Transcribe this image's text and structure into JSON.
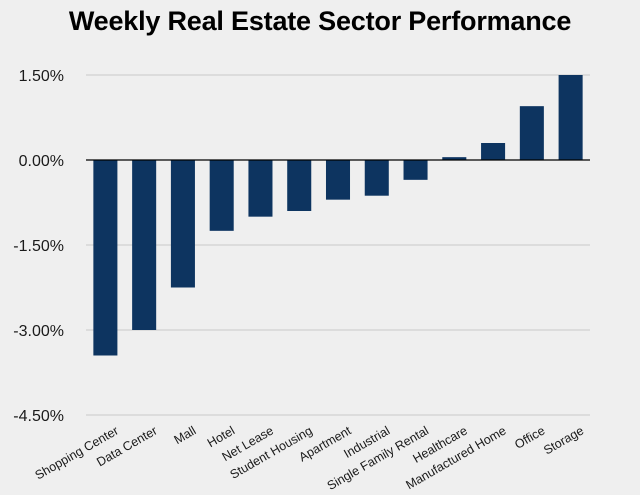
{
  "chart_data": {
    "type": "bar",
    "title": "Weekly Real Estate Sector Performance",
    "xlabel": "",
    "ylabel": "",
    "categories": [
      "Shopping Center",
      "Data Center",
      "Mall",
      "Hotel",
      "Net Lease",
      "Student Housing",
      "Apartment",
      "Industrial",
      "Single Family Rental",
      "Healthcare",
      "Manufactured Home",
      "Office",
      "Storage"
    ],
    "values": [
      -3.45,
      -3.0,
      -2.25,
      -1.25,
      -1.0,
      -0.9,
      -0.7,
      -0.63,
      -0.35,
      0.05,
      0.3,
      0.95,
      1.5
    ],
    "ylim": [
      -4.5,
      1.5
    ],
    "yticks": [
      1.5,
      0.0,
      -1.5,
      -3.0,
      -4.5
    ],
    "ytick_labels": [
      "1.50%",
      "0.00%",
      "-1.50%",
      "-3.00%",
      "-4.50%"
    ],
    "grid": true,
    "legend": "none",
    "bar_color": "#0d3460",
    "grid_color": "#c9c9c9",
    "background_color": "#efefef"
  }
}
